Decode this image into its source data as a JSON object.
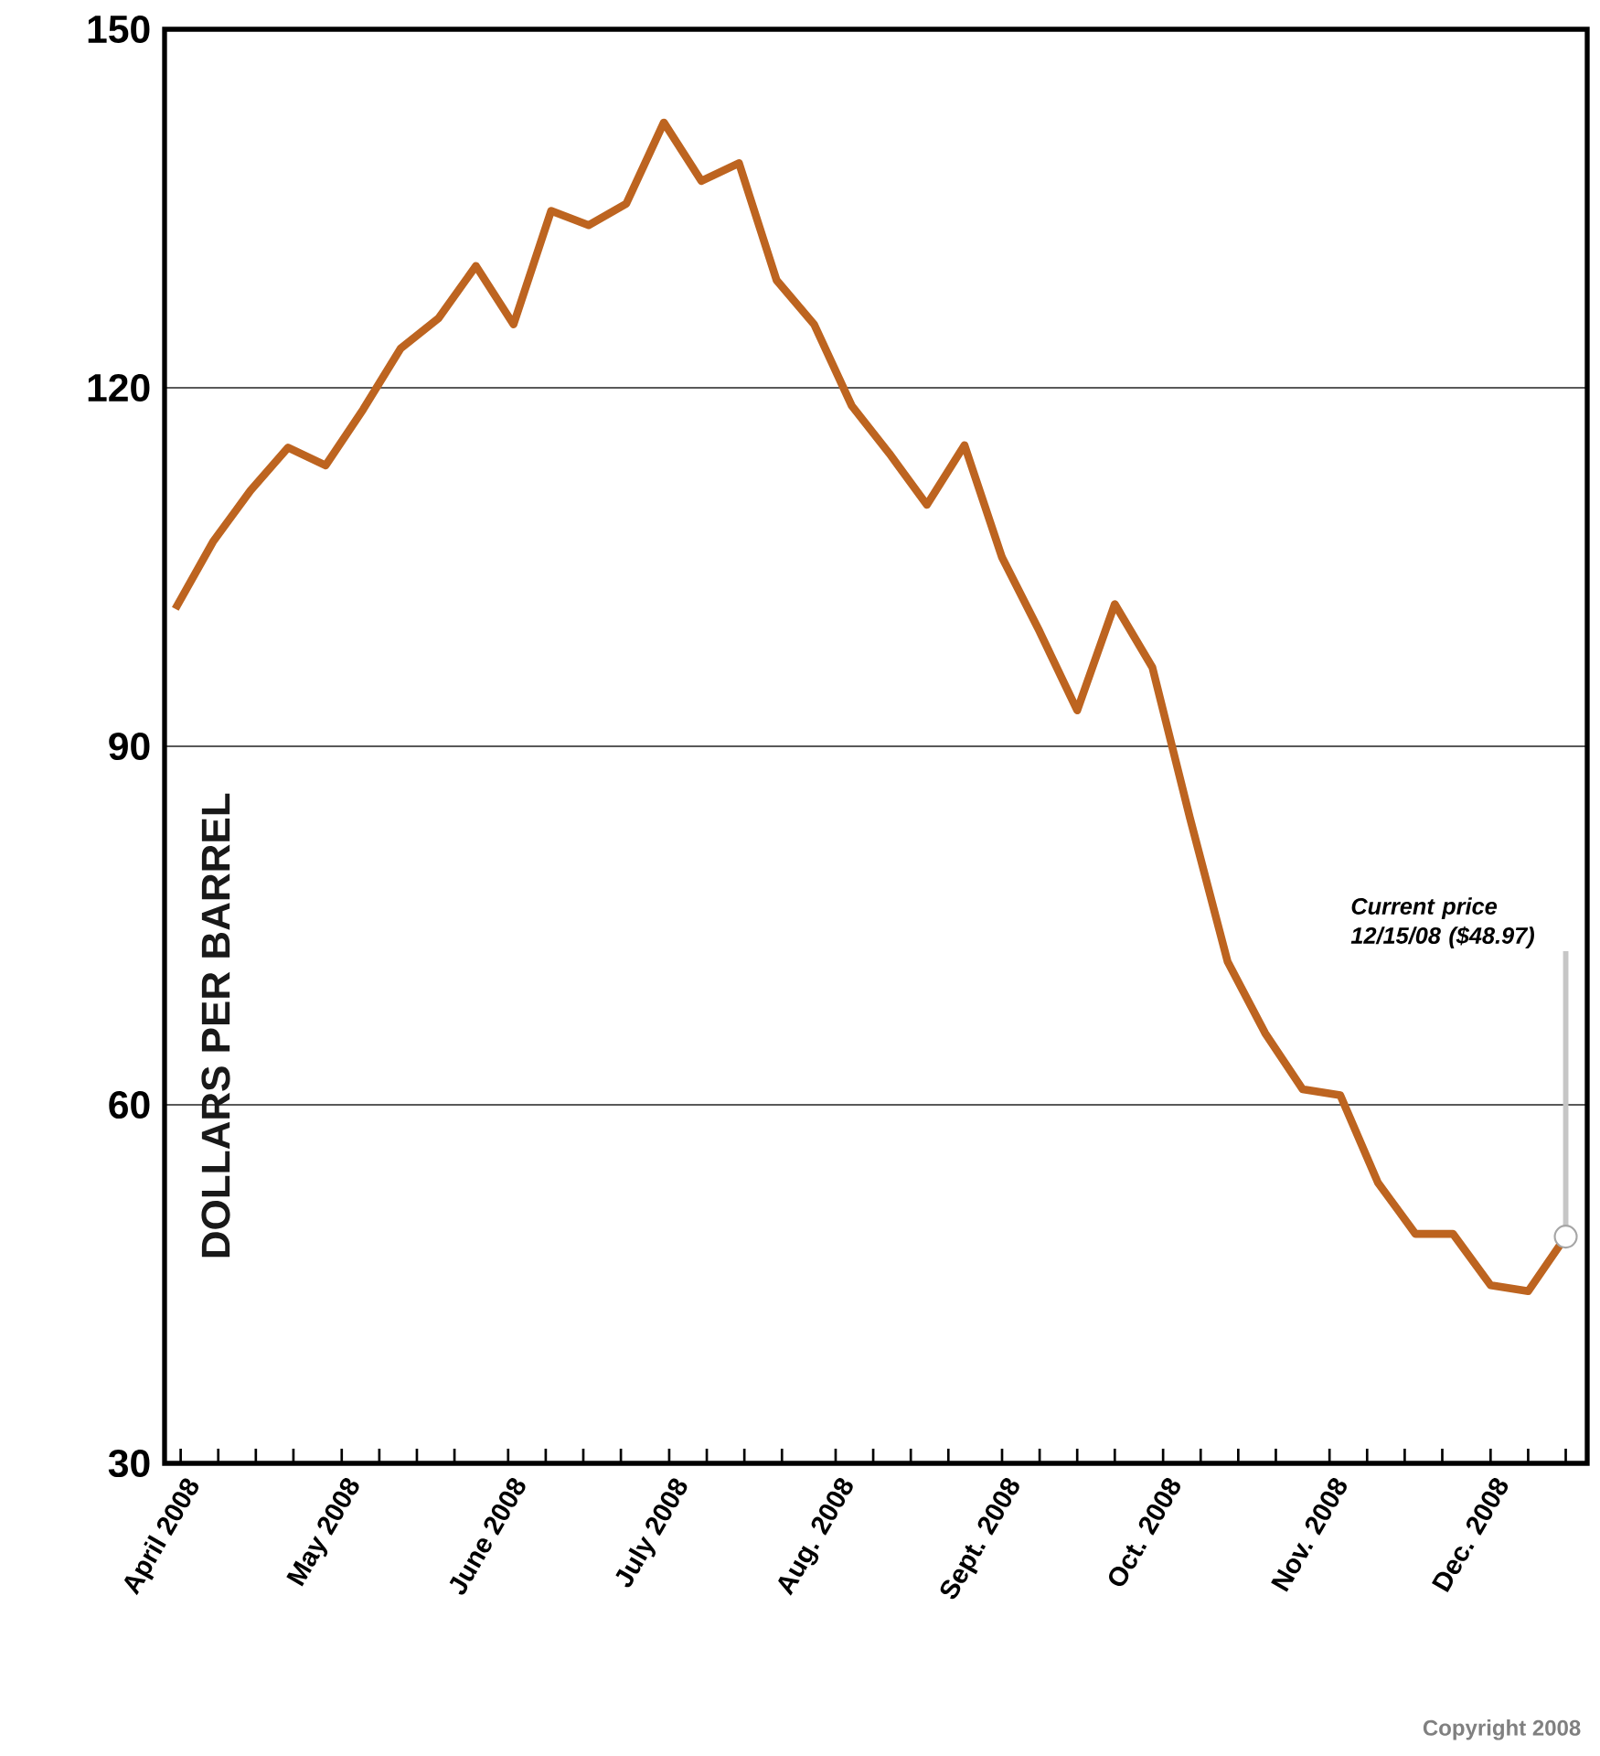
{
  "chart_data": {
    "type": "line",
    "ylabel": "DOLLARS PER BARREL",
    "x": [
      "2008-03-31",
      "2008-04-07",
      "2008-04-14",
      "2008-04-21",
      "2008-04-28",
      "2008-05-05",
      "2008-05-12",
      "2008-05-19",
      "2008-05-26",
      "2008-06-02",
      "2008-06-09",
      "2008-06-16",
      "2008-06-23",
      "2008-06-30",
      "2008-07-07",
      "2008-07-14",
      "2008-07-21",
      "2008-07-28",
      "2008-08-04",
      "2008-08-11",
      "2008-08-18",
      "2008-08-25",
      "2008-09-01",
      "2008-09-08",
      "2008-09-15",
      "2008-09-22",
      "2008-09-29",
      "2008-10-06",
      "2008-10-13",
      "2008-10-20",
      "2008-10-27",
      "2008-11-03",
      "2008-11-10",
      "2008-11-17",
      "2008-11-24",
      "2008-12-01",
      "2008-12-08",
      "2008-12-15"
    ],
    "series": [
      {
        "color": "#bd6420",
        "values": [
          101.5,
          107.1,
          111.4,
          115,
          113.5,
          118.2,
          123.3,
          125.8,
          130.2,
          125.3,
          134.8,
          133.6,
          135.4,
          142.2,
          137.3,
          138.8,
          129,
          125.3,
          118.5,
          114.5,
          110.2,
          115.2,
          105.8,
          99.6,
          93,
          101.9,
          96.6,
          84,
          72,
          66,
          61.3,
          60.8,
          53.5,
          49.2,
          49.2,
          44.9,
          44.4,
          48.97
        ]
      }
    ],
    "xlim": [
      "2008-03-29",
      "2008-12-19"
    ],
    "xticks": [
      {
        "value": "2008-04-01",
        "label": "April 2008"
      },
      {
        "value": "2008-05-01",
        "label": "May 2008"
      },
      {
        "value": "2008-06-01",
        "label": "June 2008"
      },
      {
        "value": "2008-07-01",
        "label": "July 2008"
      },
      {
        "value": "2008-08-01",
        "label": "Aug. 2008"
      },
      {
        "value": "2008-09-01",
        "label": "Sept. 2008"
      },
      {
        "value": "2008-10-01",
        "label": "Oct. 2008"
      },
      {
        "value": "2008-11-01",
        "label": "Nov. 2008"
      },
      {
        "value": "2008-12-01",
        "label": "Dec. 2008"
      },
      {
        "value": "2008-04-08",
        "label": null
      },
      {
        "value": "2008-04-15",
        "label": null
      },
      {
        "value": "2008-04-22",
        "label": null
      },
      {
        "value": "2008-05-08",
        "label": null
      },
      {
        "value": "2008-05-15",
        "label": null
      },
      {
        "value": "2008-05-22",
        "label": null
      },
      {
        "value": "2008-06-08",
        "label": null
      },
      {
        "value": "2008-06-15",
        "label": null
      },
      {
        "value": "2008-06-22",
        "label": null
      },
      {
        "value": "2008-07-08",
        "label": null
      },
      {
        "value": "2008-07-15",
        "label": null
      },
      {
        "value": "2008-07-22",
        "label": null
      },
      {
        "value": "2008-08-08",
        "label": null
      },
      {
        "value": "2008-08-15",
        "label": null
      },
      {
        "value": "2008-08-22",
        "label": null
      },
      {
        "value": "2008-09-08",
        "label": null
      },
      {
        "value": "2008-09-15",
        "label": null
      },
      {
        "value": "2008-09-22",
        "label": null
      },
      {
        "value": "2008-10-08",
        "label": null
      },
      {
        "value": "2008-10-15",
        "label": null
      },
      {
        "value": "2008-10-22",
        "label": null
      },
      {
        "value": "2008-11-08",
        "label": null
      },
      {
        "value": "2008-11-15",
        "label": null
      },
      {
        "value": "2008-11-22",
        "label": null
      },
      {
        "value": "2008-12-08",
        "label": null
      },
      {
        "value": "2008-12-15",
        "label": null
      }
    ],
    "ylim": [
      30,
      150
    ],
    "yticks": [
      30,
      60,
      90,
      120,
      150
    ],
    "grid": "y",
    "annotations": [
      "Current price 12/15/08 ($48.97)",
      "Copyright 2008"
    ]
  }
}
